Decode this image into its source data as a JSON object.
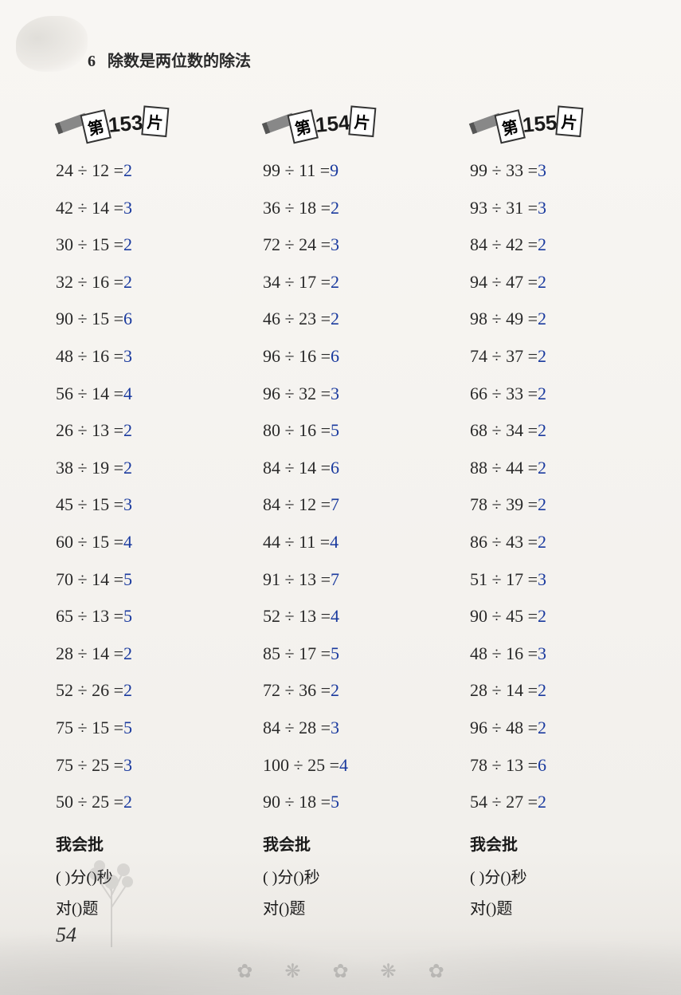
{
  "chapter": {
    "number": "6",
    "title": "除数是两位数的除法"
  },
  "page_number": "54",
  "colors": {
    "text": "#2a2a2a",
    "answer": "#1a3a9e",
    "background": "#f5f3f0"
  },
  "badge": {
    "prefix": "第",
    "suffix": "片"
  },
  "grading": {
    "title": "我会批",
    "line1_a": "( )分(",
    "line1_b": ")秒",
    "line2_a": "对(",
    "line2_b": ")题"
  },
  "sections": [
    {
      "number": "153",
      "problems": [
        {
          "q": "24 ÷ 12 =",
          "a": "2"
        },
        {
          "q": "42 ÷ 14 =",
          "a": "3"
        },
        {
          "q": "30 ÷ 15 =",
          "a": "2"
        },
        {
          "q": "32 ÷ 16 =",
          "a": "2"
        },
        {
          "q": "90 ÷ 15 =",
          "a": "6"
        },
        {
          "q": "48 ÷ 16 =",
          "a": "3"
        },
        {
          "q": "56 ÷ 14 =",
          "a": "4"
        },
        {
          "q": "26 ÷ 13 =",
          "a": "2"
        },
        {
          "q": "38 ÷ 19 =",
          "a": "2"
        },
        {
          "q": "45 ÷ 15 =",
          "a": "3"
        },
        {
          "q": "60 ÷ 15 =",
          "a": "4"
        },
        {
          "q": "70 ÷ 14 =",
          "a": "5"
        },
        {
          "q": "65 ÷ 13 =",
          "a": "5"
        },
        {
          "q": "28 ÷ 14 =",
          "a": "2"
        },
        {
          "q": "52 ÷ 26 =",
          "a": "2"
        },
        {
          "q": "75 ÷ 15 =",
          "a": "5"
        },
        {
          "q": "75 ÷ 25 =",
          "a": "3"
        },
        {
          "q": "50 ÷ 25 =",
          "a": "2"
        }
      ]
    },
    {
      "number": "154",
      "problems": [
        {
          "q": "99 ÷ 11 =",
          "a": "9"
        },
        {
          "q": "36 ÷ 18 =",
          "a": "2"
        },
        {
          "q": "72 ÷ 24 =",
          "a": "3"
        },
        {
          "q": "34 ÷ 17 =",
          "a": "2"
        },
        {
          "q": "46 ÷ 23 =",
          "a": "2"
        },
        {
          "q": "96 ÷ 16 =",
          "a": "6"
        },
        {
          "q": "96 ÷ 32 =",
          "a": "3"
        },
        {
          "q": "80 ÷ 16 =",
          "a": "5"
        },
        {
          "q": "84 ÷ 14 =",
          "a": "6"
        },
        {
          "q": "84 ÷ 12 =",
          "a": "7"
        },
        {
          "q": "44 ÷ 11 =",
          "a": "4"
        },
        {
          "q": "91 ÷ 13 =",
          "a": "7"
        },
        {
          "q": "52 ÷ 13 =",
          "a": "4"
        },
        {
          "q": "85 ÷ 17 =",
          "a": "5"
        },
        {
          "q": "72 ÷ 36 =",
          "a": "2"
        },
        {
          "q": "84 ÷ 28 =",
          "a": "3"
        },
        {
          "q": "100 ÷ 25 =",
          "a": "4"
        },
        {
          "q": "90 ÷ 18 =",
          "a": "5"
        }
      ]
    },
    {
      "number": "155",
      "problems": [
        {
          "q": "99 ÷ 33 =",
          "a": "3"
        },
        {
          "q": "93 ÷ 31 =",
          "a": "3"
        },
        {
          "q": "84 ÷ 42 =",
          "a": "2"
        },
        {
          "q": "94 ÷ 47 =",
          "a": "2"
        },
        {
          "q": "98 ÷ 49 =",
          "a": "2"
        },
        {
          "q": "74 ÷ 37 =",
          "a": "2"
        },
        {
          "q": "66 ÷ 33 =",
          "a": "2"
        },
        {
          "q": "68 ÷ 34 =",
          "a": "2"
        },
        {
          "q": "88 ÷ 44 =",
          "a": "2"
        },
        {
          "q": "78 ÷ 39 =",
          "a": "2"
        },
        {
          "q": "86 ÷ 43 =",
          "a": "2"
        },
        {
          "q": "51 ÷ 17 =",
          "a": "3"
        },
        {
          "q": "90 ÷ 45 =",
          "a": "2"
        },
        {
          "q": "48 ÷ 16 =",
          "a": "3"
        },
        {
          "q": "28 ÷ 14 =",
          "a": "2"
        },
        {
          "q": "96 ÷ 48 =",
          "a": "2"
        },
        {
          "q": "78 ÷ 13 =",
          "a": "6"
        },
        {
          "q": "54 ÷ 27 =",
          "a": "2"
        }
      ]
    }
  ]
}
